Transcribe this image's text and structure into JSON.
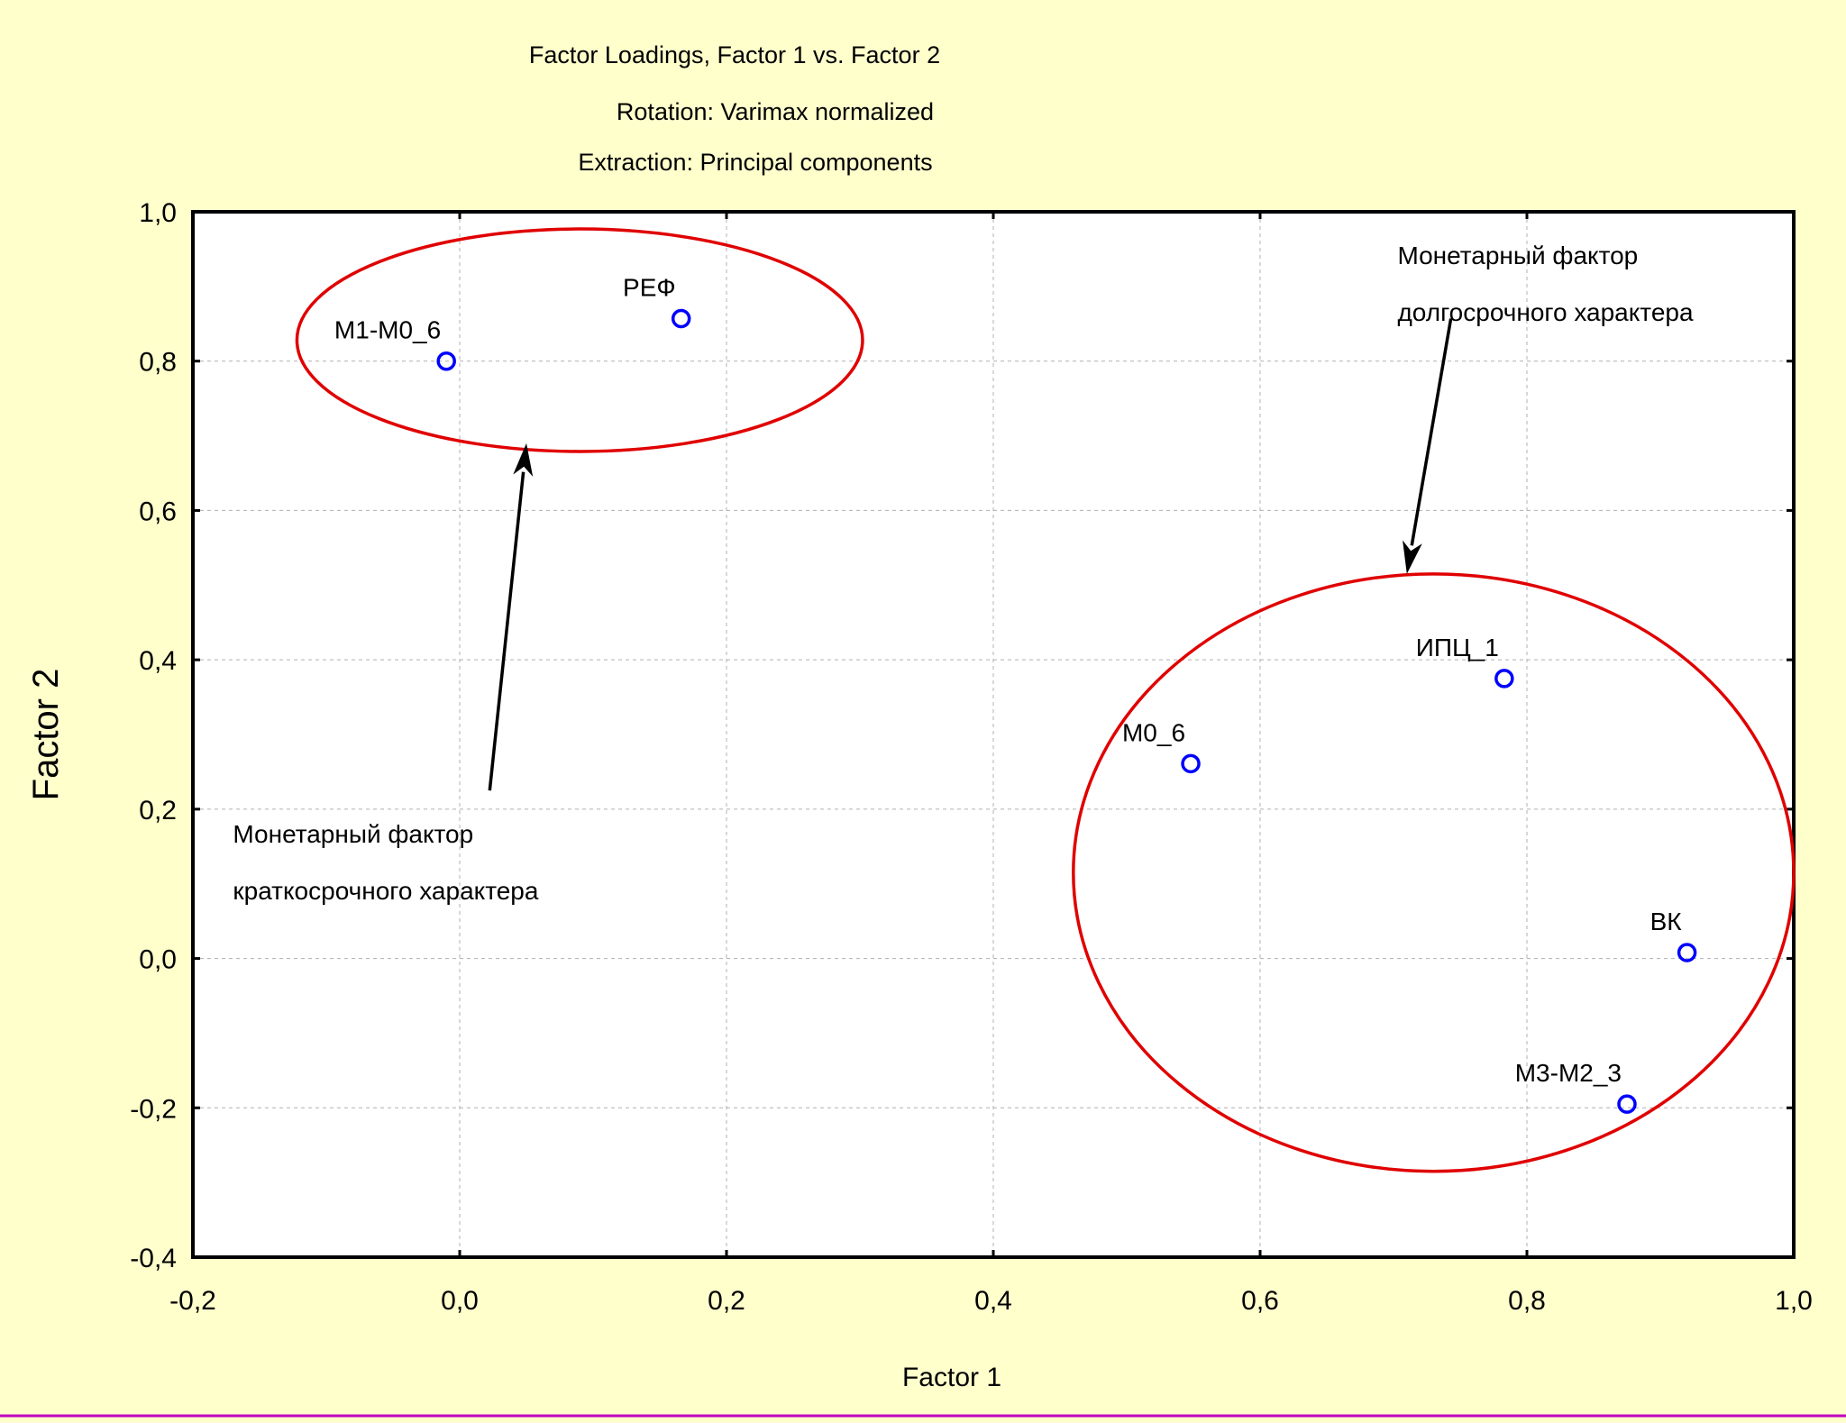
{
  "colors": {
    "background": "#FFFFCC",
    "plot_background": "#FFFFFF",
    "marker": "#0000FF",
    "ellipse": "#E00000",
    "grid": "#B0B0B0",
    "bottom_border": "#C000C0"
  },
  "chart_data": {
    "type": "scatter",
    "title": "Factor Loadings, Factor 1 vs. Factor 2",
    "subtitle": [
      "Rotation: Varimax normalized",
      "Extraction: Principal components"
    ],
    "xlabel": "Factor 1",
    "ylabel": "Factor 2",
    "xlim": [
      -0.2,
      1.0
    ],
    "ylim": [
      -0.4,
      1.0
    ],
    "x_ticks": [
      -0.2,
      0.0,
      0.2,
      0.4,
      0.6,
      0.8,
      1.0
    ],
    "y_ticks": [
      -0.4,
      -0.2,
      0.0,
      0.2,
      0.4,
      0.6,
      0.8,
      1.0
    ],
    "x_tick_labels": [
      "-0,2",
      "0,0",
      "0,2",
      "0,4",
      "0,6",
      "0,8",
      "1,0"
    ],
    "y_tick_labels": [
      "-0,4",
      "-0,2",
      "0,0",
      "0,2",
      "0,4",
      "0,6",
      "0,8",
      "1,0"
    ],
    "grid": true,
    "points": [
      {
        "label": "M1-M0_6",
        "x": -0.01,
        "y": 0.8
      },
      {
        "label": "РЕФ",
        "x": 0.166,
        "y": 0.857
      },
      {
        "label": "ИПЦ_1",
        "x": 0.783,
        "y": 0.375
      },
      {
        "label": "M0_6",
        "x": 0.548,
        "y": 0.261
      },
      {
        "label": "ВК",
        "x": 0.92,
        "y": 0.008
      },
      {
        "label": "M3-M2_3",
        "x": 0.875,
        "y": -0.195
      }
    ],
    "annotations": [
      {
        "lines": [
          "Монетарный фактор",
          "краткосрочного характера"
        ],
        "x": -0.17,
        "y": 0.155
      },
      {
        "lines": [
          "Монетарный фактор",
          "долгосрочного характера"
        ],
        "x": 0.703,
        "y": 0.93
      }
    ],
    "ellipses": [
      {
        "cx": 0.09,
        "cy": 0.828,
        "rx": 0.212,
        "ry": 0.149
      },
      {
        "cx": 0.73,
        "cy": 0.115,
        "rx": 0.27,
        "ry": 0.4
      }
    ],
    "arrows": [
      {
        "from": [
          0.0225,
          0.225
        ],
        "to": [
          0.05,
          0.69
        ]
      },
      {
        "from": [
          0.743,
          0.857
        ],
        "to": [
          0.71,
          0.515
        ]
      }
    ]
  }
}
